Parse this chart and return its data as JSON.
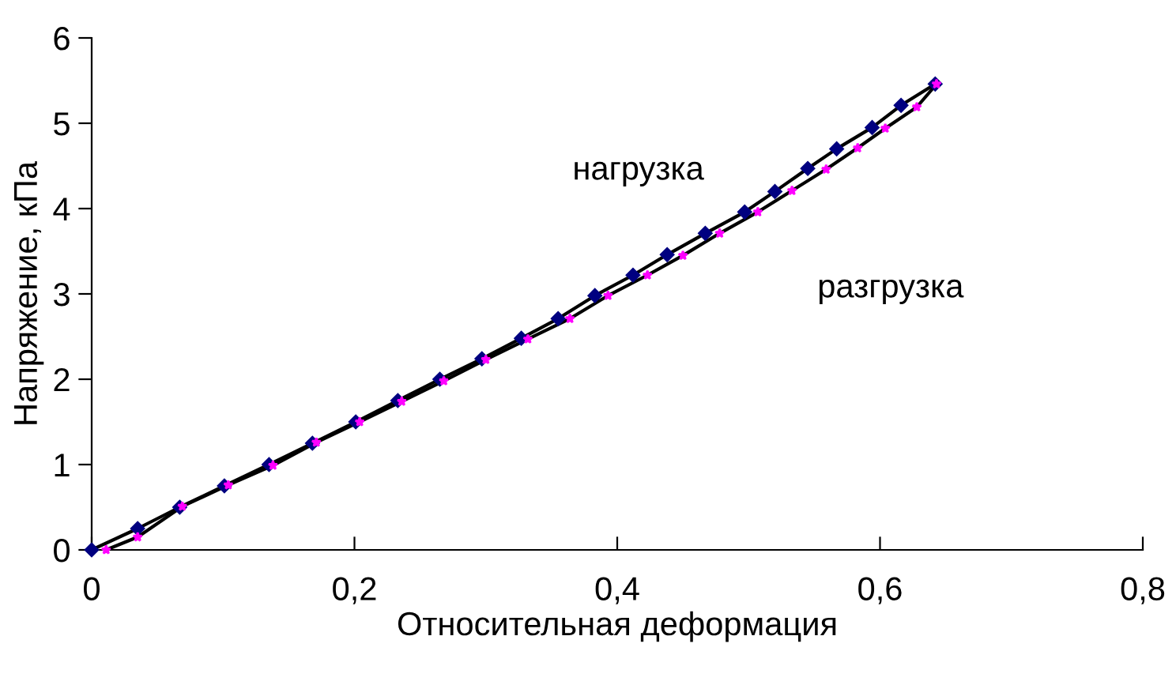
{
  "chart_data": {
    "type": "line",
    "xlabel": "Относительная деформация",
    "ylabel": "Напряжение, кПа",
    "xlim": [
      0,
      0.8
    ],
    "ylim": [
      0,
      6
    ],
    "xticks": [
      {
        "value": 0,
        "label": "0"
      },
      {
        "value": 0.2,
        "label": "0,2"
      },
      {
        "value": 0.4,
        "label": "0,4"
      },
      {
        "value": 0.6,
        "label": "0,6"
      },
      {
        "value": 0.8,
        "label": "0,8"
      }
    ],
    "yticks": [
      0,
      1,
      2,
      3,
      4,
      5,
      6
    ],
    "grid": false,
    "legend": false,
    "annotations": [
      "нагрузка",
      "разгрузка"
    ],
    "series": [
      {
        "color": "#000080",
        "marker": "diamond",
        "x": [
          0,
          0.035,
          0.067,
          0.101,
          0.135,
          0.168,
          0.201,
          0.233,
          0.265,
          0.297,
          0.327,
          0.355,
          0.383,
          0.412,
          0.438,
          0.467,
          0.497,
          0.52,
          0.545,
          0.567,
          0.594,
          0.616,
          0.642
        ],
        "values": [
          0,
          0.25,
          0.5,
          0.75,
          1.0,
          1.25,
          1.5,
          1.75,
          2.0,
          2.24,
          2.48,
          2.71,
          2.98,
          3.22,
          3.46,
          3.71,
          3.96,
          4.2,
          4.47,
          4.7,
          4.95,
          5.21,
          5.46
        ]
      },
      {
        "color": "#ff00ff",
        "marker": "star",
        "x": [
          0.643,
          0.628,
          0.604,
          0.583,
          0.559,
          0.533,
          0.507,
          0.478,
          0.45,
          0.423,
          0.393,
          0.364,
          0.332,
          0.3,
          0.268,
          0.236,
          0.204,
          0.171,
          0.138,
          0.104,
          0.069,
          0.035,
          0.011
        ],
        "values": [
          5.46,
          5.19,
          4.94,
          4.71,
          4.46,
          4.21,
          3.96,
          3.71,
          3.45,
          3.22,
          2.98,
          2.71,
          2.47,
          2.23,
          1.98,
          1.74,
          1.5,
          1.26,
          0.99,
          0.76,
          0.51,
          0.15,
          0
        ]
      }
    ]
  }
}
